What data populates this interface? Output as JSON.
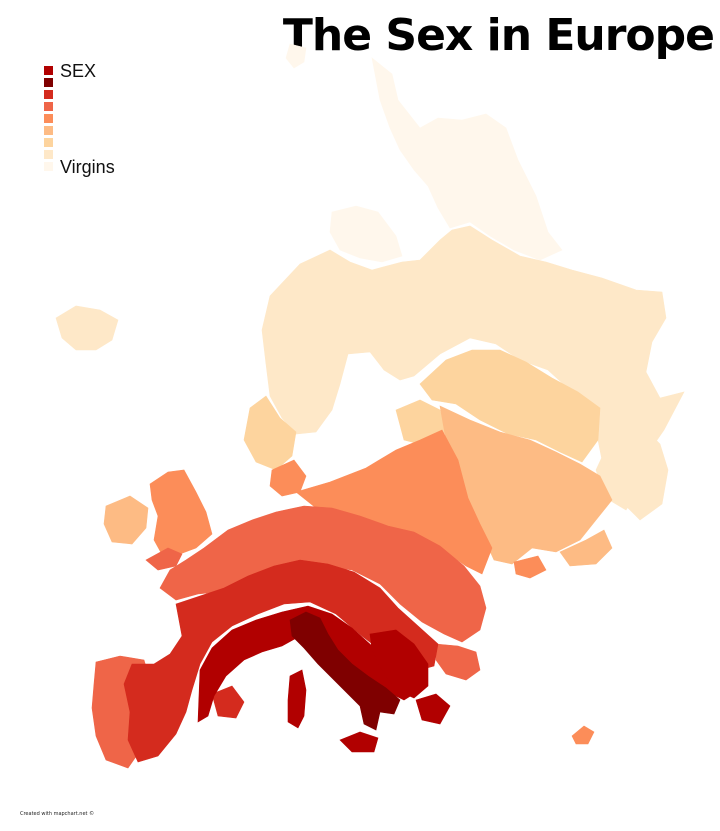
{
  "title": "The Sex in Europe",
  "legend": {
    "items": [
      {
        "label": "SEX",
        "color": "#b10000"
      },
      {
        "label": "",
        "color": "#7f0000"
      },
      {
        "label": "",
        "color": "#d42b1e"
      },
      {
        "label": "",
        "color": "#ef6548"
      },
      {
        "label": "",
        "color": "#fc8d59"
      },
      {
        "label": "",
        "color": "#fdbb84"
      },
      {
        "label": "",
        "color": "#fdd49e"
      },
      {
        "label": "",
        "color": "#fee8c8"
      },
      {
        "label": "Virgins",
        "color": "#fff7ec"
      }
    ]
  },
  "credit": "Created with mapchart.net ©",
  "map": {
    "colors": {
      "darkest": "#7f0000",
      "dark": "#b10000",
      "red": "#d42b1e",
      "orange_red": "#ef6548",
      "orange": "#fc8d59",
      "light_orange": "#fdbb84",
      "peach": "#fdd49e",
      "pale": "#fee8c8",
      "palest": "#fff7ec"
    }
  }
}
